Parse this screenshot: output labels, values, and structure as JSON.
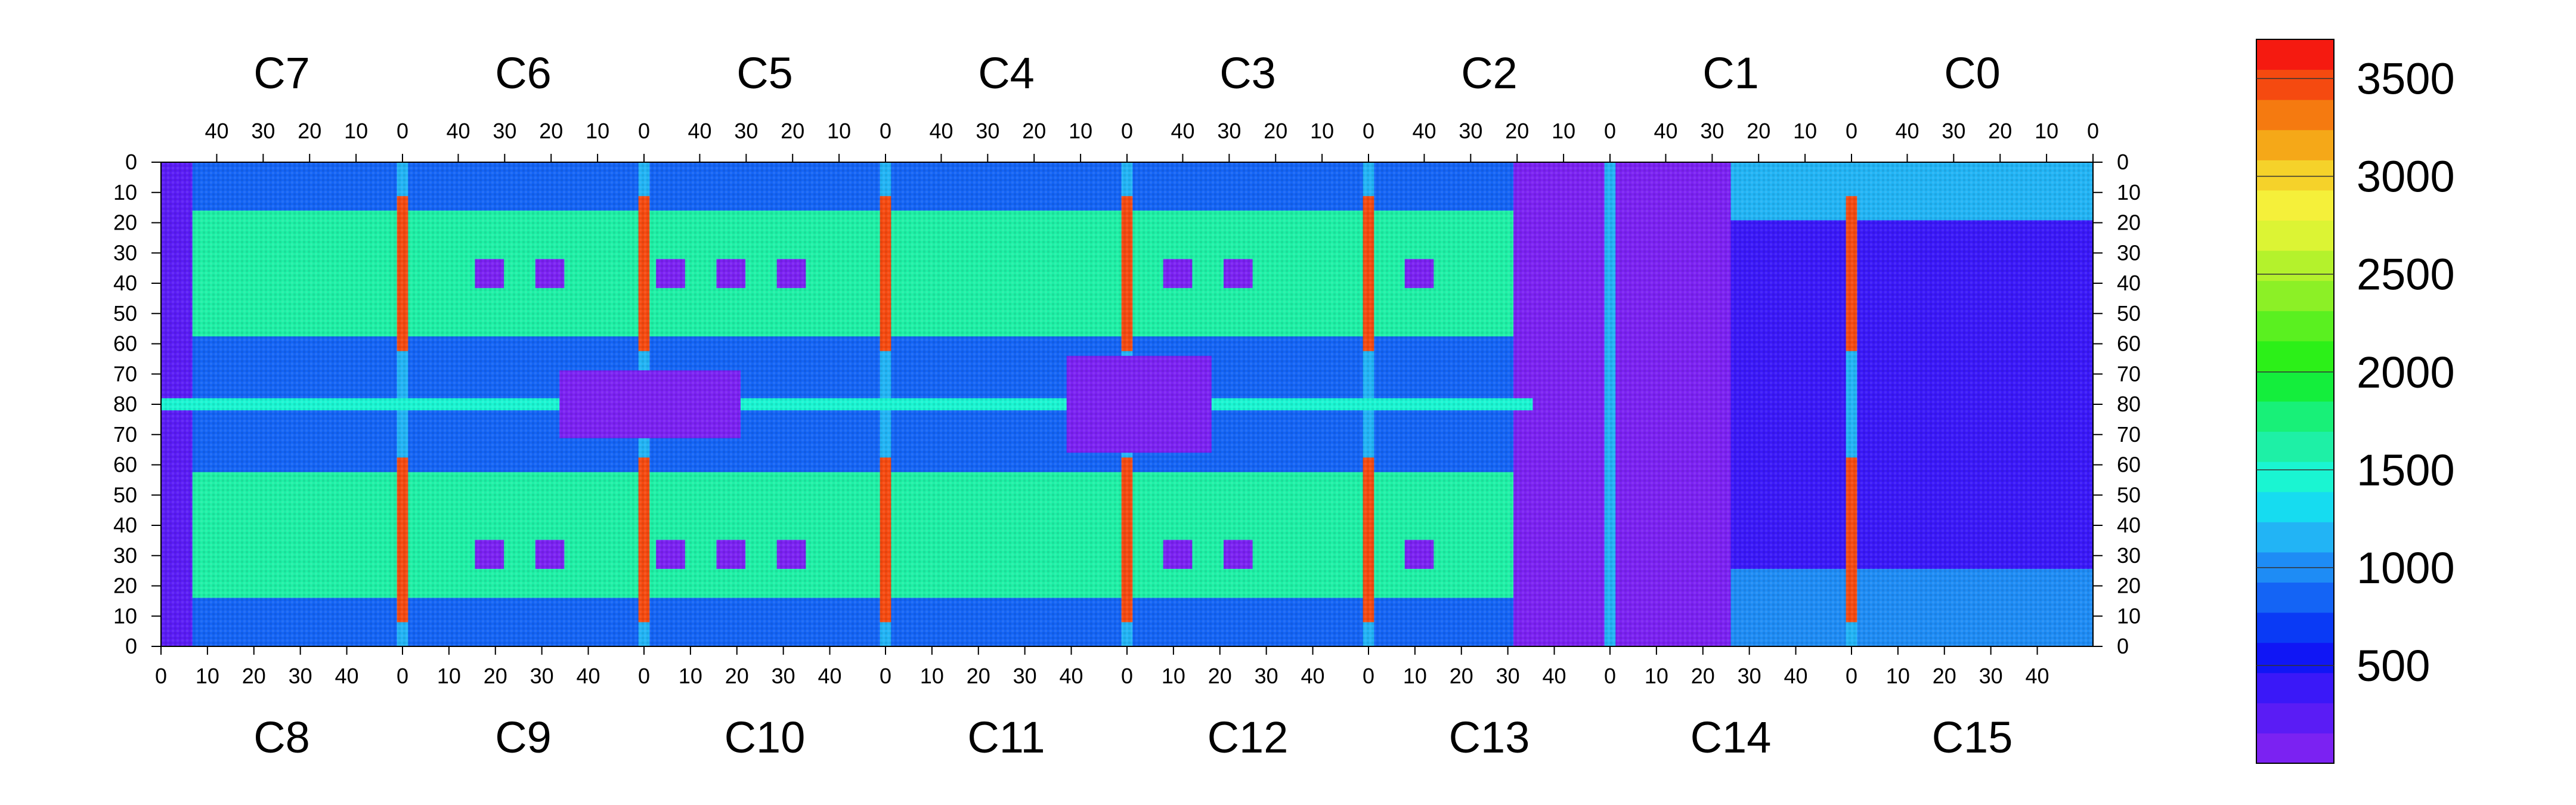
{
  "chart_data": {
    "type": "heatmap",
    "title": "",
    "xlabel": "",
    "ylabel": "",
    "top_row_chips": [
      "C7",
      "C6",
      "C5",
      "C4",
      "C3",
      "C2",
      "C1",
      "C0"
    ],
    "bottom_row_chips": [
      "C8",
      "C9",
      "C10",
      "C11",
      "C12",
      "C13",
      "C14",
      "C15"
    ],
    "top_x_tick_labels": [
      "40",
      "30",
      "20",
      "10",
      "0"
    ],
    "bottom_x_tick_labels": [
      "0",
      "10",
      "20",
      "30",
      "40"
    ],
    "top_x_tick_values": [
      40,
      30,
      20,
      10,
      0
    ],
    "bottom_x_tick_values": [
      0,
      10,
      20,
      30,
      40
    ],
    "columns_per_chip": 52,
    "rows_per_chip": 80,
    "y_tick_labels_top_half": [
      "0",
      "10",
      "20",
      "30",
      "40",
      "50",
      "60",
      "70",
      "80"
    ],
    "y_tick_labels_bottom_half": [
      "70",
      "60",
      "50",
      "40",
      "30",
      "20",
      "10",
      "0"
    ],
    "y_tick_values_top_half": [
      0,
      10,
      20,
      30,
      40,
      50,
      60,
      70,
      80
    ],
    "y_tick_values_bottom_half": [
      70,
      60,
      50,
      40,
      30,
      20,
      10,
      0
    ],
    "z_range": [
      0,
      3700
    ],
    "colorbar_labels": [
      "3500",
      "3000",
      "2500",
      "2000",
      "1500",
      "1000",
      "500"
    ],
    "colorbar_values": [
      3500,
      3000,
      2500,
      2000,
      1500,
      1000,
      500
    ],
    "colorbar_palette": [
      "#7b22f2",
      "#5a1cf5",
      "#3a18f8",
      "#1016f5",
      "#0a3af5",
      "#1464f5",
      "#1e8cf5",
      "#22b4f5",
      "#16dcf0",
      "#1af5d2",
      "#1ef0a6",
      "#18f078",
      "#14ee3c",
      "#2cf018",
      "#5af020",
      "#8cf026",
      "#b4f22c",
      "#dcf434",
      "#f5f03a",
      "#f5d22a",
      "#f5a818",
      "#f57a10",
      "#f54a10",
      "#f51a10"
    ],
    "features": {
      "hot_boundary_columns": "chip edges (column 0) strongly elevated, ~3500 near rows 10-60",
      "central_row_band": "row 80 boundary elevated ~1500",
      "C13_C14_region": "low values ~0-500 with white (empty) pixels"
    }
  }
}
